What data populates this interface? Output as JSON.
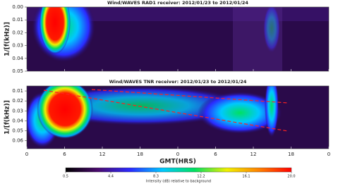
{
  "chart_data": {
    "type": "spectrogram",
    "xlabel": "GMT(HRS)",
    "xlim": [
      0,
      48
    ],
    "xticks": [
      0,
      6,
      12,
      18,
      {
        "value": 24,
        "label": "0"
      },
      {
        "value": 30,
        "label": "6"
      },
      {
        "value": 36,
        "label": "12"
      },
      {
        "value": 42,
        "label": "18"
      },
      {
        "value": 48,
        "label": "0"
      }
    ],
    "panels": [
      {
        "title": "Wind/WAVES RAD1 receiver: 2012/01/23 to 2012/01/24",
        "ylabel": "1/[f(kHz)]",
        "ylim": [
          0,
          0.05
        ],
        "yticks": [
          {
            "value": 0,
            "label": "0.00"
          },
          0.01,
          0.02,
          0.03,
          0.04,
          0.05
        ]
      },
      {
        "title": "Wind/WAVES TNR receiver: 2012/01/23 to 2012/01/24",
        "ylabel": "1/[f(kHz)]",
        "ylim": [
          0.005,
          0.068
        ],
        "yticks": [
          0.01,
          0.02,
          0.03,
          0.04,
          0.05,
          0.06
        ]
      }
    ],
    "colorbar": {
      "label": "Intensity (dB) relative to background",
      "lim": [
        0.5,
        20
      ],
      "ticks": [
        0.5,
        4.4,
        8.3,
        12.2,
        16.1,
        {
          "value": 20,
          "label": "20.0"
        }
      ],
      "colors": [
        "#000000",
        "#4a0a6e",
        "#2a2aff",
        "#00c8ff",
        "#00e060",
        "#f0f000",
        "#ff8000",
        "#ff0000"
      ]
    }
  }
}
